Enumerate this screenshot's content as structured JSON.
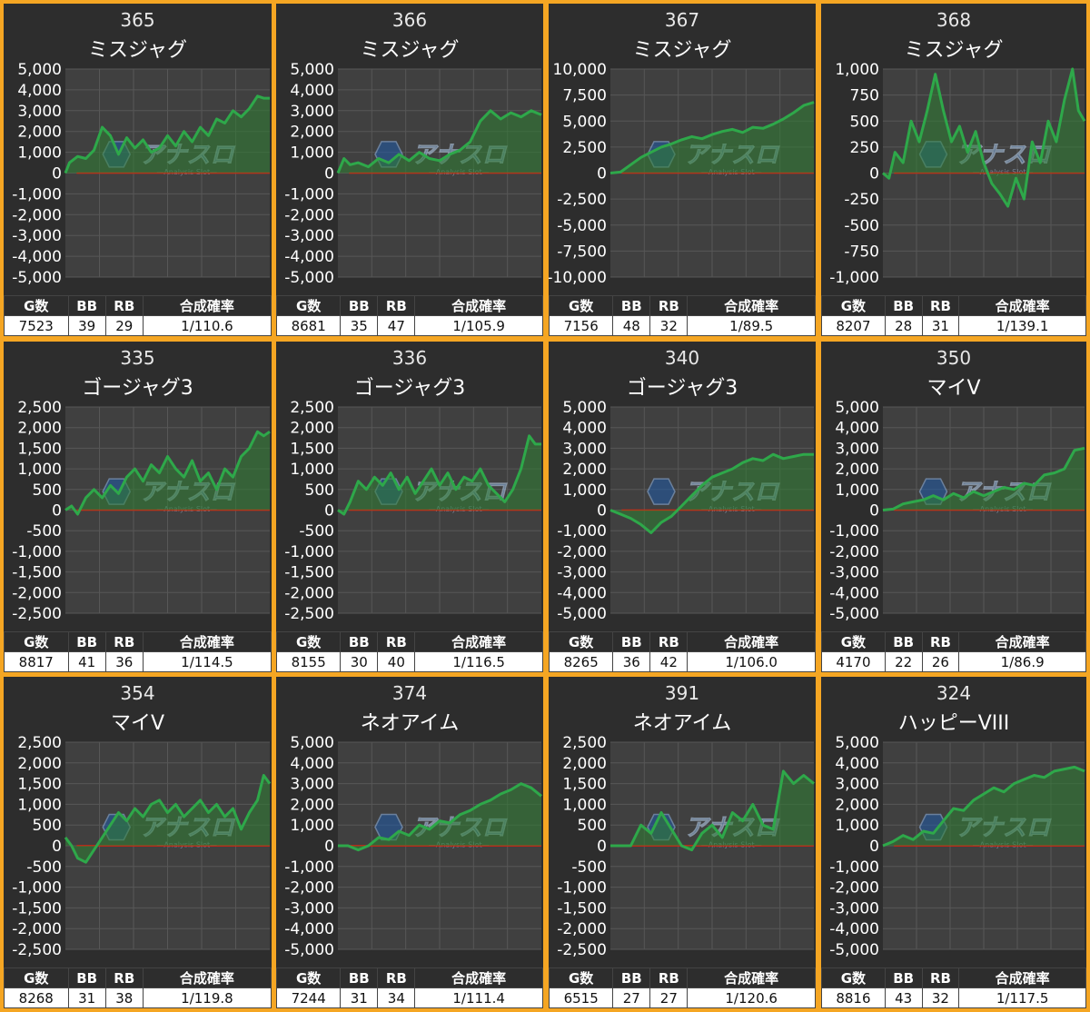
{
  "colors": {
    "background": "#f5a623",
    "panel": "#2d2d2d",
    "plot_area": "#404040",
    "grid": "#575757",
    "zero_line": "#e02010",
    "line": "#2ea84a",
    "fill": "#2e7d32"
  },
  "table_headers": [
    "G数",
    "BB",
    "RB",
    "合成確率"
  ],
  "watermark": {
    "main": "アナスロ",
    "sub": "Analysis Slot"
  },
  "chart_data": [
    {
      "type": "area",
      "number": "365",
      "name": "ミスジャグ",
      "ylim": [
        -5000,
        5000
      ],
      "yticks": [
        "5,000",
        "4,000",
        "3,000",
        "2,000",
        "1,000",
        "0",
        "-1,000",
        "-2,000",
        "-3,000",
        "-4,000",
        "-5,000"
      ],
      "x": [
        0,
        0.02,
        0.06,
        0.1,
        0.14,
        0.18,
        0.22,
        0.26,
        0.3,
        0.34,
        0.38,
        0.42,
        0.46,
        0.5,
        0.54,
        0.58,
        0.62,
        0.66,
        0.7,
        0.74,
        0.78,
        0.82,
        0.86,
        0.9,
        0.94,
        0.97,
        1
      ],
      "y": [
        0,
        500,
        800,
        700,
        1100,
        2200,
        1800,
        900,
        1700,
        1200,
        1600,
        1000,
        1200,
        1800,
        1300,
        2000,
        1500,
        2200,
        1800,
        2600,
        2400,
        3000,
        2700,
        3100,
        3700,
        3600,
        3600
      ],
      "stats": {
        "games": "7523",
        "bb": "39",
        "rb": "29",
        "rate": "1/110.6"
      }
    },
    {
      "type": "area",
      "number": "366",
      "name": "ミスジャグ",
      "ylim": [
        -5000,
        5000
      ],
      "yticks": [
        "5,000",
        "4,000",
        "3,000",
        "2,000",
        "1,000",
        "0",
        "-1,000",
        "-2,000",
        "-3,000",
        "-4,000",
        "-5,000"
      ],
      "x": [
        0,
        0.03,
        0.06,
        0.1,
        0.15,
        0.2,
        0.25,
        0.3,
        0.35,
        0.4,
        0.45,
        0.5,
        0.55,
        0.6,
        0.65,
        0.7,
        0.75,
        0.8,
        0.85,
        0.9,
        0.95,
        1
      ],
      "y": [
        0,
        700,
        400,
        500,
        300,
        700,
        500,
        900,
        600,
        1000,
        700,
        600,
        900,
        1100,
        1500,
        2500,
        3000,
        2600,
        2900,
        2700,
        3000,
        2800
      ],
      "stats": {
        "games": "8681",
        "bb": "35",
        "rb": "47",
        "rate": "1/105.9"
      }
    },
    {
      "type": "area",
      "number": "367",
      "name": "ミスジャグ",
      "ylim": [
        -10000,
        10000
      ],
      "yticks": [
        "10,000",
        "7,500",
        "5,000",
        "2,500",
        "0",
        "-2,500",
        "-5,000",
        "-7,500",
        "-10,000"
      ],
      "x": [
        0,
        0.05,
        0.1,
        0.15,
        0.2,
        0.25,
        0.3,
        0.35,
        0.4,
        0.45,
        0.5,
        0.55,
        0.6,
        0.65,
        0.7,
        0.75,
        0.8,
        0.85,
        0.9,
        0.95,
        1
      ],
      "y": [
        0,
        100,
        800,
        1500,
        2000,
        2500,
        2800,
        3200,
        3500,
        3300,
        3700,
        4000,
        4200,
        3900,
        4400,
        4300,
        4700,
        5200,
        5800,
        6500,
        6800
      ],
      "stats": {
        "games": "7156",
        "bb": "48",
        "rb": "32",
        "rate": "1/89.5"
      }
    },
    {
      "type": "area",
      "number": "368",
      "name": "ミスジャグ",
      "ylim": [
        -1000,
        1000
      ],
      "yticks": [
        "1,000",
        "750",
        "500",
        "250",
        "0",
        "-250",
        "-500",
        "-750",
        "-1,000"
      ],
      "x": [
        0,
        0.03,
        0.06,
        0.1,
        0.14,
        0.18,
        0.22,
        0.26,
        0.3,
        0.34,
        0.38,
        0.42,
        0.46,
        0.5,
        0.54,
        0.58,
        0.62,
        0.66,
        0.7,
        0.74,
        0.78,
        0.82,
        0.86,
        0.9,
        0.94,
        0.97,
        1
      ],
      "y": [
        0,
        -50,
        200,
        100,
        500,
        300,
        600,
        950,
        600,
        300,
        450,
        200,
        400,
        100,
        -100,
        -200,
        -320,
        -50,
        -250,
        300,
        100,
        500,
        300,
        700,
        1000,
        600,
        500
      ],
      "stats": {
        "games": "8207",
        "bb": "28",
        "rb": "31",
        "rate": "1/139.1"
      }
    },
    {
      "type": "area",
      "number": "335",
      "name": "ゴージャグ3",
      "ylim": [
        -2500,
        2500
      ],
      "yticks": [
        "2,500",
        "2,000",
        "1,500",
        "1,000",
        "500",
        "0",
        "-500",
        "-1,000",
        "-1,500",
        "-2,000",
        "-2,500"
      ],
      "x": [
        0,
        0.03,
        0.06,
        0.1,
        0.14,
        0.18,
        0.22,
        0.26,
        0.3,
        0.34,
        0.38,
        0.42,
        0.46,
        0.5,
        0.54,
        0.58,
        0.62,
        0.66,
        0.7,
        0.74,
        0.78,
        0.82,
        0.86,
        0.9,
        0.94,
        0.97,
        1
      ],
      "y": [
        0,
        100,
        -100,
        300,
        500,
        300,
        600,
        400,
        800,
        1000,
        700,
        1100,
        900,
        1300,
        1000,
        800,
        1200,
        700,
        900,
        500,
        1000,
        800,
        1300,
        1500,
        1900,
        1800,
        1900
      ],
      "stats": {
        "games": "8817",
        "bb": "41",
        "rb": "36",
        "rate": "1/114.5"
      }
    },
    {
      "type": "area",
      "number": "336",
      "name": "ゴージャグ3",
      "ylim": [
        -2500,
        2500
      ],
      "yticks": [
        "2,500",
        "2,000",
        "1,500",
        "1,000",
        "500",
        "0",
        "-500",
        "-1,000",
        "-1,500",
        "-2,000",
        "-2,500"
      ],
      "x": [
        0,
        0.03,
        0.06,
        0.1,
        0.14,
        0.18,
        0.22,
        0.26,
        0.3,
        0.34,
        0.38,
        0.42,
        0.46,
        0.5,
        0.54,
        0.58,
        0.62,
        0.66,
        0.7,
        0.74,
        0.78,
        0.82,
        0.86,
        0.9,
        0.94,
        0.97,
        1
      ],
      "y": [
        0,
        -100,
        200,
        700,
        500,
        800,
        600,
        900,
        500,
        800,
        400,
        700,
        1000,
        600,
        900,
        500,
        800,
        700,
        1000,
        600,
        400,
        200,
        500,
        1000,
        1800,
        1600,
        1600
      ],
      "stats": {
        "games": "8155",
        "bb": "30",
        "rb": "40",
        "rate": "1/116.5"
      }
    },
    {
      "type": "area",
      "number": "340",
      "name": "ゴージャグ3",
      "ylim": [
        -5000,
        5000
      ],
      "yticks": [
        "5,000",
        "4,000",
        "3,000",
        "2,000",
        "1,000",
        "0",
        "-1,000",
        "-2,000",
        "-3,000",
        "-4,000",
        "-5,000"
      ],
      "x": [
        0,
        0.05,
        0.1,
        0.15,
        0.2,
        0.25,
        0.3,
        0.35,
        0.4,
        0.45,
        0.5,
        0.55,
        0.6,
        0.65,
        0.7,
        0.75,
        0.8,
        0.85,
        0.9,
        0.95,
        1
      ],
      "y": [
        0,
        -200,
        -400,
        -700,
        -1100,
        -600,
        -300,
        200,
        700,
        1200,
        1600,
        1800,
        2000,
        2300,
        2500,
        2400,
        2700,
        2500,
        2600,
        2700,
        2700
      ],
      "stats": {
        "games": "8265",
        "bb": "36",
        "rb": "42",
        "rate": "1/106.0"
      }
    },
    {
      "type": "area",
      "number": "350",
      "name": "マイV",
      "ylim": [
        -5000,
        5000
      ],
      "yticks": [
        "5,000",
        "4,000",
        "3,000",
        "2,000",
        "1,000",
        "0",
        "-1,000",
        "-2,000",
        "-3,000",
        "-4,000",
        "-5,000"
      ],
      "x": [
        0,
        0.05,
        0.1,
        0.15,
        0.2,
        0.25,
        0.3,
        0.35,
        0.4,
        0.45,
        0.5,
        0.55,
        0.6,
        0.65,
        0.7,
        0.75,
        0.8,
        0.85,
        0.9,
        0.95,
        1
      ],
      "y": [
        0,
        50,
        300,
        400,
        500,
        700,
        500,
        800,
        600,
        900,
        700,
        900,
        1100,
        1000,
        1300,
        1200,
        1700,
        1800,
        2000,
        2900,
        3000
      ],
      "stats": {
        "games": "4170",
        "bb": "22",
        "rb": "26",
        "rate": "1/86.9"
      }
    },
    {
      "type": "area",
      "number": "354",
      "name": "マイV",
      "ylim": [
        -2500,
        2500
      ],
      "yticks": [
        "2,500",
        "2,000",
        "1,500",
        "1,000",
        "500",
        "0",
        "-500",
        "-1,000",
        "-1,500",
        "-2,000",
        "-2,500"
      ],
      "x": [
        0,
        0.03,
        0.06,
        0.1,
        0.14,
        0.18,
        0.22,
        0.26,
        0.3,
        0.34,
        0.38,
        0.42,
        0.46,
        0.5,
        0.54,
        0.58,
        0.62,
        0.66,
        0.7,
        0.74,
        0.78,
        0.82,
        0.86,
        0.9,
        0.94,
        0.97,
        1
      ],
      "y": [
        200,
        0,
        -300,
        -400,
        -100,
        200,
        500,
        800,
        600,
        900,
        700,
        1000,
        1100,
        800,
        1000,
        700,
        900,
        1100,
        800,
        1000,
        700,
        900,
        400,
        800,
        1100,
        1700,
        1500
      ],
      "stats": {
        "games": "8268",
        "bb": "31",
        "rb": "38",
        "rate": "1/119.8"
      }
    },
    {
      "type": "area",
      "number": "374",
      "name": "ネオアイム",
      "ylim": [
        -5000,
        5000
      ],
      "yticks": [
        "5,000",
        "4,000",
        "3,000",
        "2,000",
        "1,000",
        "0",
        "-1,000",
        "-2,000",
        "-3,000",
        "-4,000",
        "-5,000"
      ],
      "x": [
        0,
        0.05,
        0.1,
        0.15,
        0.2,
        0.25,
        0.3,
        0.35,
        0.4,
        0.45,
        0.5,
        0.55,
        0.6,
        0.65,
        0.7,
        0.75,
        0.8,
        0.85,
        0.9,
        0.95,
        1
      ],
      "y": [
        0,
        0,
        -200,
        0,
        400,
        300,
        700,
        500,
        1000,
        800,
        1200,
        1100,
        1500,
        1700,
        2000,
        2200,
        2500,
        2700,
        3000,
        2800,
        2400
      ],
      "stats": {
        "games": "7244",
        "bb": "31",
        "rb": "34",
        "rate": "1/111.4"
      }
    },
    {
      "type": "area",
      "number": "391",
      "name": "ネオアイム",
      "ylim": [
        -2500,
        2500
      ],
      "yticks": [
        "2,500",
        "2,000",
        "1,500",
        "1,000",
        "500",
        "0",
        "-500",
        "-1,000",
        "-1,500",
        "-2,000",
        "-2,500"
      ],
      "x": [
        0,
        0.05,
        0.1,
        0.15,
        0.2,
        0.25,
        0.3,
        0.35,
        0.4,
        0.45,
        0.5,
        0.55,
        0.6,
        0.65,
        0.7,
        0.75,
        0.8,
        0.85,
        0.9,
        0.95,
        1
      ],
      "y": [
        0,
        0,
        0,
        500,
        300,
        800,
        400,
        0,
        -100,
        300,
        500,
        200,
        800,
        600,
        1000,
        500,
        400,
        1800,
        1500,
        1700,
        1500
      ],
      "stats": {
        "games": "6515",
        "bb": "27",
        "rb": "27",
        "rate": "1/120.6"
      }
    },
    {
      "type": "area",
      "number": "324",
      "name": "ハッピーVIII",
      "ylim": [
        -5000,
        5000
      ],
      "yticks": [
        "5,000",
        "4,000",
        "3,000",
        "2,000",
        "1,000",
        "0",
        "-1,000",
        "-2,000",
        "-3,000",
        "-4,000",
        "-5,000"
      ],
      "x": [
        0,
        0.05,
        0.1,
        0.15,
        0.2,
        0.25,
        0.3,
        0.35,
        0.4,
        0.45,
        0.5,
        0.55,
        0.6,
        0.65,
        0.7,
        0.75,
        0.8,
        0.85,
        0.9,
        0.95,
        1
      ],
      "y": [
        0,
        200,
        500,
        300,
        700,
        600,
        1200,
        1800,
        1700,
        2200,
        2500,
        2800,
        2600,
        3000,
        3200,
        3400,
        3300,
        3600,
        3700,
        3800,
        3600
      ],
      "stats": {
        "games": "8816",
        "bb": "43",
        "rb": "32",
        "rate": "1/117.5"
      }
    }
  ]
}
